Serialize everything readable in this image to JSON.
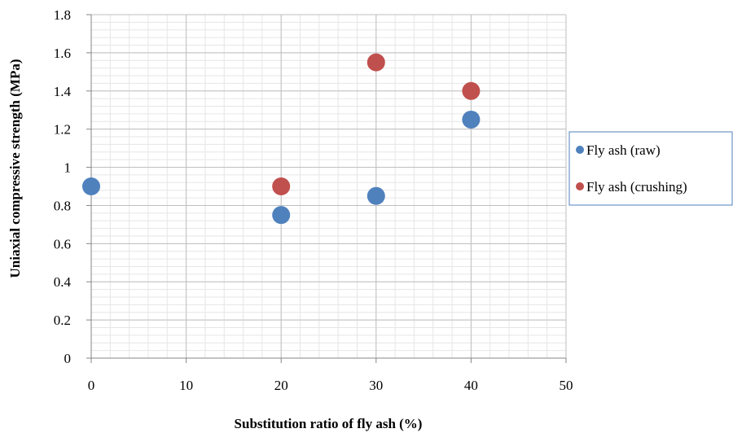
{
  "chart_data": {
    "type": "scatter",
    "title": "",
    "xlabel": "Substitution ratio of fly ash (%)",
    "ylabel": "Uniaxial compressive strength (MPa)",
    "xlim": [
      0,
      50
    ],
    "ylim": [
      0,
      1.8
    ],
    "x_ticks": [
      0,
      10,
      20,
      30,
      40,
      50
    ],
    "y_ticks": [
      0,
      0.2,
      0.4,
      0.6,
      0.8,
      1,
      1.2,
      1.4,
      1.6,
      1.8
    ],
    "x_tick_labels": [
      "0",
      "10",
      "20",
      "30",
      "40",
      "50"
    ],
    "y_tick_labels": [
      "0",
      "0.2",
      "0.4",
      "0.6",
      "0.8",
      "1",
      "1.2",
      "1.4",
      "1.6",
      "1.8"
    ],
    "grid": true,
    "minor_grid": true,
    "legend_position": "right",
    "series": [
      {
        "name": "Fly ash (raw)",
        "color": "#4f81bd",
        "points": [
          {
            "x": 0,
            "y": 0.9
          },
          {
            "x": 20,
            "y": 0.75
          },
          {
            "x": 30,
            "y": 0.85
          },
          {
            "x": 40,
            "y": 1.25
          }
        ]
      },
      {
        "name": "Fly ash (crushing)",
        "color": "#c0504d",
        "points": [
          {
            "x": 20,
            "y": 0.9
          },
          {
            "x": 30,
            "y": 1.55
          },
          {
            "x": 40,
            "y": 1.4
          }
        ]
      }
    ]
  }
}
